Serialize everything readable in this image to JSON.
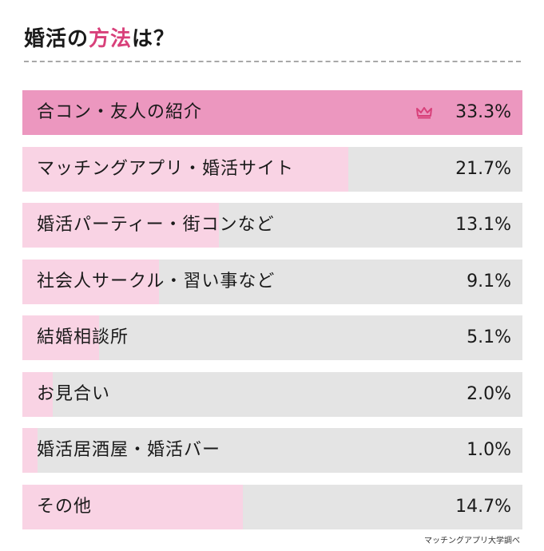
{
  "title_prefix": "婚活の",
  "title_accent": "方法",
  "title_suffix": "は？",
  "source": "マッチングアプリ大学調べ",
  "colors": {
    "accent": "#d8407a",
    "top_fill": "#ec97bf",
    "fill": "#f9d3e4",
    "track": "#e4e4e4"
  },
  "chart_data": {
    "type": "bar",
    "orientation": "horizontal",
    "categories": [
      "合コン・友人の紹介",
      "マッチングアプリ・婚活サイト",
      "婚活パーティー・街コンなど",
      "社会人サークル・習い事など",
      "結婚相談所",
      "お見合い",
      "婚活居酒屋・婚活バー",
      "その他"
    ],
    "values": [
      33.3,
      21.7,
      13.1,
      9.1,
      5.1,
      2.0,
      1.0,
      14.7
    ],
    "value_labels": [
      "33.3%",
      "21.7%",
      "13.1%",
      "9.1%",
      "5.1%",
      "2.0%",
      "1.0%",
      "14.7%"
    ],
    "xlim": [
      0,
      33.3
    ],
    "top_marker": "crown-icon"
  }
}
